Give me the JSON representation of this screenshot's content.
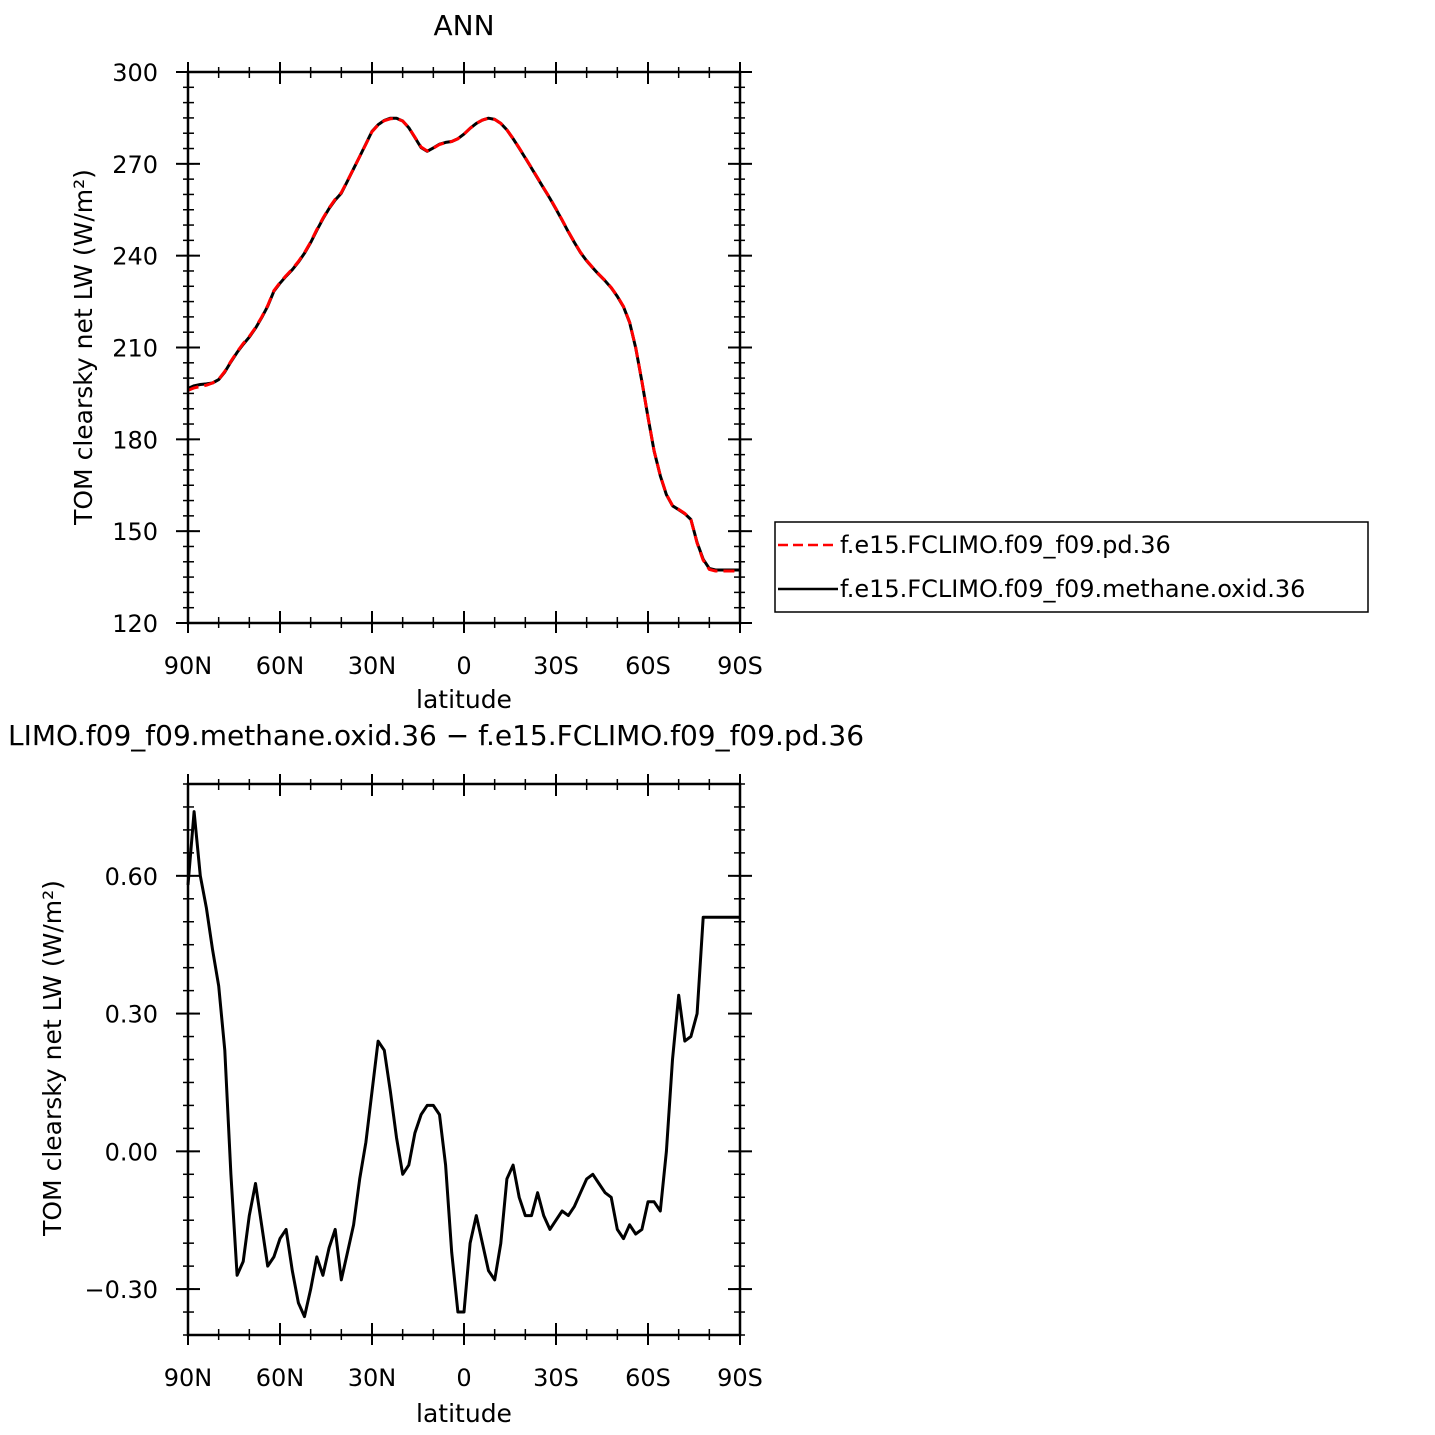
{
  "chart_data": [
    {
      "type": "line",
      "title": "ANN",
      "xlabel": "latitude",
      "ylabel": "TOM clearsky net LW (W/m²)",
      "x_tick_labels": [
        "90N",
        "60N",
        "30N",
        "0",
        "30S",
        "60S",
        "90S"
      ],
      "y_tick_labels": [
        "120",
        "150",
        "180",
        "210",
        "240",
        "270",
        "300"
      ],
      "ylim": [
        120,
        300
      ],
      "grid": false,
      "legend_placement": "right",
      "x": [
        90,
        88,
        86,
        84,
        82,
        80,
        78,
        76,
        74,
        72,
        70,
        68,
        66,
        64,
        62,
        60,
        58,
        56,
        54,
        52,
        50,
        48,
        46,
        44,
        42,
        40,
        38,
        36,
        34,
        32,
        30,
        28,
        26,
        24,
        22,
        20,
        18,
        16,
        14,
        12,
        10,
        8,
        6,
        4,
        2,
        0,
        -2,
        -4,
        -6,
        -8,
        -10,
        -12,
        -14,
        -16,
        -18,
        -20,
        -22,
        -24,
        -26,
        -28,
        -30,
        -32,
        -34,
        -36,
        -38,
        -40,
        -42,
        -44,
        -46,
        -48,
        -50,
        -52,
        -54,
        -56,
        -58,
        -60,
        -62,
        -64,
        -66,
        -68,
        -70,
        -72,
        -74,
        -76,
        -78,
        -80,
        -82,
        -84,
        -86,
        -88,
        -90
      ],
      "series": [
        {
          "name": "f.e15.FCLIMO.f09_f09.pd.36",
          "color": "#ff0000",
          "dash": "dashed",
          "values": [
            196.0,
            196.8,
            197.3,
            197.7,
            198.4,
            199.6,
            202.2,
            205.5,
            208.6,
            211.3,
            213.6,
            216.5,
            219.9,
            223.7,
            228.6,
            231.2,
            233.5,
            235.6,
            238.1,
            241.0,
            244.5,
            248.5,
            252.2,
            255.6,
            258.4,
            260.6,
            264.5,
            268.4,
            272.4,
            276.4,
            280.5,
            282.7,
            284.1,
            284.7,
            284.8,
            284.0,
            281.8,
            278.7,
            275.5,
            274.2,
            275.1,
            276.3,
            276.9,
            277.3,
            278.2,
            279.7,
            281.6,
            283.2,
            284.3,
            284.9,
            284.5,
            283.2,
            281.1,
            278.3,
            275.2,
            272.0,
            268.7,
            265.4,
            262.1,
            258.8,
            255.3,
            251.7,
            247.9,
            244.4,
            241.1,
            238.4,
            236.1,
            233.9,
            231.9,
            229.6,
            226.8,
            223.4,
            218.3,
            210.0,
            199.0,
            187.3,
            176.3,
            168.2,
            162.0,
            158.4,
            157.1,
            155.8,
            153.8,
            146.1,
            140.5,
            137.5,
            137.0,
            137.0,
            137.0,
            137.0,
            137.0
          ]
        },
        {
          "name": "f.e15.FCLIMO.f09_f09.methane.oxid.36",
          "color": "#000000",
          "dash": "solid",
          "values": [
            196.6,
            197.5,
            197.9,
            198.1,
            198.4,
            199.5,
            202.0,
            205.3,
            208.4,
            211.0,
            213.4,
            216.3,
            219.7,
            223.5,
            228.4,
            231.0,
            233.3,
            235.4,
            237.9,
            240.8,
            244.3,
            248.3,
            252.0,
            255.4,
            258.2,
            260.4,
            264.4,
            268.4,
            272.4,
            276.5,
            280.6,
            282.8,
            284.2,
            284.9,
            284.9,
            284.0,
            281.8,
            278.6,
            275.3,
            274.1,
            275.2,
            276.4,
            277.0,
            277.3,
            278.2,
            279.7,
            281.6,
            283.2,
            284.3,
            284.9,
            284.5,
            283.2,
            281.1,
            278.2,
            275.1,
            271.9,
            268.6,
            265.3,
            262.0,
            258.7,
            255.2,
            251.6,
            247.8,
            244.3,
            241.0,
            238.3,
            236.0,
            233.8,
            231.8,
            229.5,
            226.7,
            223.3,
            218.2,
            209.9,
            198.9,
            187.2,
            176.2,
            168.1,
            161.9,
            158.3,
            157.0,
            155.7,
            153.8,
            146.3,
            140.8,
            137.8,
            137.3,
            137.3,
            137.3,
            137.3,
            137.3
          ]
        }
      ]
    },
    {
      "type": "line",
      "title": "LIMO.f09_f09.methane.oxid.36 − f.e15.FCLIMO.f09_f09.pd.36",
      "xlabel": "latitude",
      "ylabel": "TOM clearsky net LW (W/m²)",
      "x_tick_labels": [
        "90N",
        "60N",
        "30N",
        "0",
        "30S",
        "60S",
        "90S"
      ],
      "y_tick_labels": [
        "−0.30",
        "0.00",
        "0.30",
        "0.60"
      ],
      "ylim": [
        -0.4,
        0.8
      ],
      "grid": false,
      "x": [
        90,
        88,
        86,
        84,
        82,
        80,
        78,
        76,
        74,
        72,
        70,
        68,
        66,
        64,
        62,
        60,
        58,
        56,
        54,
        52,
        50,
        48,
        46,
        44,
        42,
        40,
        38,
        36,
        34,
        32,
        30,
        28,
        26,
        24,
        22,
        20,
        18,
        16,
        14,
        12,
        10,
        8,
        6,
        4,
        2,
        0,
        -2,
        -4,
        -6,
        -8,
        -10,
        -12,
        -14,
        -16,
        -18,
        -20,
        -22,
        -24,
        -26,
        -28,
        -30,
        -32,
        -34,
        -36,
        -38,
        -40,
        -42,
        -44,
        -46,
        -48,
        -50,
        -52,
        -54,
        -56,
        -58,
        -60,
        -62,
        -64,
        -66,
        -68,
        -70,
        -72,
        -74,
        -76,
        -78,
        -80,
        -82,
        -84,
        -86,
        -88,
        -90
      ],
      "series": [
        {
          "values": [
            0.58,
            0.74,
            0.6,
            0.53,
            0.44,
            0.36,
            0.22,
            -0.05,
            -0.27,
            -0.24,
            -0.14,
            -0.07,
            -0.16,
            -0.25,
            -0.23,
            -0.19,
            -0.17,
            -0.26,
            -0.33,
            -0.36,
            -0.3,
            -0.23,
            -0.27,
            -0.21,
            -0.17,
            -0.28,
            -0.22,
            -0.16,
            -0.06,
            0.02,
            0.13,
            0.24,
            0.22,
            0.13,
            0.03,
            -0.05,
            -0.03,
            0.04,
            0.08,
            0.1,
            0.1,
            0.08,
            -0.03,
            -0.22,
            -0.35,
            -0.35,
            -0.2,
            -0.14,
            -0.2,
            -0.26,
            -0.28,
            -0.2,
            -0.06,
            -0.03,
            -0.1,
            -0.14,
            -0.14,
            -0.09,
            -0.14,
            -0.17,
            -0.15,
            -0.13,
            -0.14,
            -0.12,
            -0.09,
            -0.06,
            -0.05,
            -0.07,
            -0.09,
            -0.1,
            -0.17,
            -0.19,
            -0.16,
            -0.18,
            -0.17,
            -0.11,
            -0.11,
            -0.13,
            0.0,
            0.2,
            0.34,
            0.24,
            0.25,
            0.3,
            0.51,
            0.51,
            0.51,
            0.51,
            0.51,
            0.51,
            0.51
          ]
        }
      ]
    }
  ],
  "legend": {
    "items": [
      {
        "label": "f.e15.FCLIMO.f09_f09.pd.36",
        "color": "#ff0000",
        "dash": "dashed"
      },
      {
        "label": "f.e15.FCLIMO.f09_f09.methane.oxid.36",
        "color": "#000000",
        "dash": "solid"
      }
    ]
  }
}
